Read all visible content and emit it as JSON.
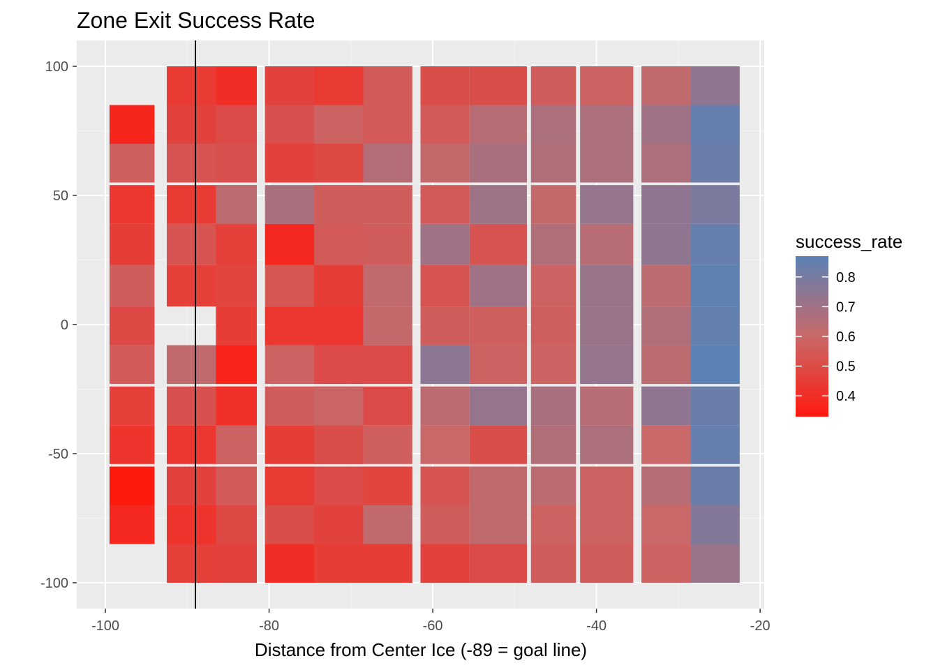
{
  "chart_data": {
    "type": "heatmap",
    "title": "Zone Exit Success Rate",
    "xlabel": "Distance from Center Ice (-89 = goal line)",
    "ylabel": "",
    "xlim": [
      -103.5,
      -19.5
    ],
    "ylim": [
      -110,
      110
    ],
    "x_ticks": [
      -100,
      -80,
      -60,
      -40,
      -20
    ],
    "y_ticks": [
      -100,
      -50,
      0,
      50,
      100
    ],
    "x_tick_labels": [
      "-100",
      "-80",
      "-60",
      "-40",
      "-20"
    ],
    "y_tick_labels": [
      "-100",
      "-50",
      "0",
      "50",
      "100"
    ],
    "grid": true,
    "vline_x": -89,
    "legend": {
      "title": "success_rate",
      "position": "right",
      "range": [
        0.33,
        0.87
      ],
      "breaks": [
        0.4,
        0.5,
        0.6,
        0.7,
        0.8
      ],
      "break_labels": [
        "0.4",
        "0.5",
        "0.6",
        "0.7",
        "0.8"
      ],
      "low_color": "#ff1a0f",
      "mid_color": "#c86868",
      "high_color": "#5b82b5"
    },
    "columns": [
      {
        "x0": -99.5,
        "x1": -94,
        "cells": [
          {
            "y0": -85,
            "y1": -70,
            "v": 0.38
          },
          {
            "y0": -70,
            "y1": -55,
            "v": 0.33
          },
          {
            "y0": -54,
            "y1": -39,
            "v": 0.42
          },
          {
            "y0": -39,
            "y1": -24,
            "v": 0.46
          },
          {
            "y0": -23,
            "y1": -8,
            "v": 0.55
          },
          {
            "y0": -8,
            "y1": 7,
            "v": 0.49
          },
          {
            "y0": 7,
            "y1": 23,
            "v": 0.56
          },
          {
            "y0": 23,
            "y1": 39,
            "v": 0.45
          },
          {
            "y0": 39,
            "y1": 54,
            "v": 0.43
          },
          {
            "y0": 55,
            "y1": 70,
            "v": 0.57
          },
          {
            "y0": 70,
            "y1": 85,
            "v": 0.37
          }
        ]
      },
      {
        "x0": -92.5,
        "x1": -81.5,
        "cells": [
          {
            "y0": -100,
            "y1": -85,
            "v": 0.46
          },
          {
            "y0": -85,
            "y1": -70,
            "v": 0.42
          },
          {
            "y0": -70,
            "y1": -55,
            "v": 0.47
          },
          {
            "y0": -54,
            "y1": -39,
            "v": 0.43
          },
          {
            "y0": -39,
            "y1": -24,
            "v": 0.52
          },
          {
            "y0": -23,
            "y1": -8,
            "v": 0.62
          },
          {
            "y0": 7,
            "y1": 23,
            "v": 0.46
          },
          {
            "y0": 23,
            "y1": 39,
            "v": 0.53
          },
          {
            "y0": 39,
            "y1": 54,
            "v": 0.44
          },
          {
            "y0": 55,
            "y1": 70,
            "v": 0.53
          },
          {
            "y0": 70,
            "y1": 85,
            "v": 0.47
          },
          {
            "y0": 85,
            "y1": 100,
            "v": 0.44
          }
        ]
      },
      {
        "x0": -86.5,
        "x1": -81.5,
        "cells": [
          {
            "y0": -100,
            "y1": -85,
            "v": 0.47
          },
          {
            "y0": -85,
            "y1": -70,
            "v": 0.49
          },
          {
            "y0": -70,
            "y1": -55,
            "v": 0.55
          },
          {
            "y0": -54,
            "y1": -39,
            "v": 0.58
          },
          {
            "y0": -39,
            "y1": -24,
            "v": 0.41
          },
          {
            "y0": -23,
            "y1": -8,
            "v": 0.36
          },
          {
            "y0": -8,
            "y1": 7,
            "v": 0.45
          },
          {
            "y0": 7,
            "y1": 23,
            "v": 0.48
          },
          {
            "y0": 23,
            "y1": 39,
            "v": 0.46
          },
          {
            "y0": 39,
            "y1": 54,
            "v": 0.63
          },
          {
            "y0": 55,
            "y1": 70,
            "v": 0.52
          },
          {
            "y0": 70,
            "y1": 85,
            "v": 0.5
          },
          {
            "y0": 85,
            "y1": 100,
            "v": 0.4
          }
        ]
      },
      {
        "x0": -80.5,
        "x1": -68.5,
        "cells": [
          {
            "y0": -100,
            "y1": -85,
            "v": 0.4
          },
          {
            "y0": -85,
            "y1": -70,
            "v": 0.51
          },
          {
            "y0": -70,
            "y1": -55,
            "v": 0.44
          },
          {
            "y0": -54,
            "y1": -39,
            "v": 0.45
          },
          {
            "y0": -39,
            "y1": -24,
            "v": 0.56
          },
          {
            "y0": -23,
            "y1": -8,
            "v": 0.58
          },
          {
            "y0": -8,
            "y1": 7,
            "v": 0.43
          },
          {
            "y0": 7,
            "y1": 23,
            "v": 0.54
          },
          {
            "y0": 23,
            "y1": 39,
            "v": 0.38
          },
          {
            "y0": 39,
            "y1": 54,
            "v": 0.68
          },
          {
            "y0": 55,
            "y1": 70,
            "v": 0.47
          },
          {
            "y0": 70,
            "y1": 85,
            "v": 0.52
          },
          {
            "y0": 85,
            "y1": 100,
            "v": 0.47
          }
        ]
      },
      {
        "x0": -74.5,
        "x1": -68.5,
        "cells": [
          {
            "y0": -100,
            "y1": -85,
            "v": 0.45
          },
          {
            "y0": -85,
            "y1": -70,
            "v": 0.47
          },
          {
            "y0": -70,
            "y1": -55,
            "v": 0.5
          },
          {
            "y0": -54,
            "y1": -39,
            "v": 0.51
          },
          {
            "y0": -39,
            "y1": -24,
            "v": 0.59
          },
          {
            "y0": -23,
            "y1": -8,
            "v": 0.5
          },
          {
            "y0": -8,
            "y1": 7,
            "v": 0.43
          },
          {
            "y0": 7,
            "y1": 23,
            "v": 0.45
          },
          {
            "y0": 23,
            "y1": 39,
            "v": 0.55
          },
          {
            "y0": 39,
            "y1": 54,
            "v": 0.56
          },
          {
            "y0": 55,
            "y1": 70,
            "v": 0.49
          },
          {
            "y0": 70,
            "y1": 85,
            "v": 0.58
          },
          {
            "y0": 85,
            "y1": 100,
            "v": 0.44
          }
        ]
      },
      {
        "x0": -68.5,
        "x1": -62.5,
        "cells": [
          {
            "y0": -100,
            "y1": -85,
            "v": 0.45
          },
          {
            "y0": -85,
            "y1": -70,
            "v": 0.62
          },
          {
            "y0": -70,
            "y1": -55,
            "v": 0.48
          },
          {
            "y0": -54,
            "y1": -39,
            "v": 0.57
          },
          {
            "y0": -39,
            "y1": -24,
            "v": 0.5
          },
          {
            "y0": -23,
            "y1": -8,
            "v": 0.5
          },
          {
            "y0": -8,
            "y1": 7,
            "v": 0.61
          },
          {
            "y0": 7,
            "y1": 23,
            "v": 0.62
          },
          {
            "y0": 23,
            "y1": 39,
            "v": 0.56
          },
          {
            "y0": 39,
            "y1": 54,
            "v": 0.56
          },
          {
            "y0": 55,
            "y1": 70,
            "v": 0.65
          },
          {
            "y0": 70,
            "y1": 85,
            "v": 0.55
          },
          {
            "y0": 85,
            "y1": 100,
            "v": 0.55
          }
        ]
      },
      {
        "x0": -61.5,
        "x1": -55.5,
        "cells": [
          {
            "y0": -100,
            "y1": -85,
            "v": 0.47
          },
          {
            "y0": -85,
            "y1": -70,
            "v": 0.56
          },
          {
            "y0": -70,
            "y1": -55,
            "v": 0.53
          },
          {
            "y0": -54,
            "y1": -39,
            "v": 0.6
          },
          {
            "y0": -39,
            "y1": -24,
            "v": 0.63
          },
          {
            "y0": -23,
            "y1": -8,
            "v": 0.75
          },
          {
            "y0": -8,
            "y1": 7,
            "v": 0.56
          },
          {
            "y0": 7,
            "y1": 23,
            "v": 0.53
          },
          {
            "y0": 23,
            "y1": 39,
            "v": 0.7
          },
          {
            "y0": 39,
            "y1": 54,
            "v": 0.55
          },
          {
            "y0": 55,
            "y1": 70,
            "v": 0.61
          },
          {
            "y0": 70,
            "y1": 85,
            "v": 0.55
          },
          {
            "y0": 85,
            "y1": 100,
            "v": 0.51
          }
        ]
      },
      {
        "x0": -55.5,
        "x1": -48.5,
        "cells": [
          {
            "y0": -100,
            "y1": -85,
            "v": 0.5
          },
          {
            "y0": -85,
            "y1": -70,
            "v": 0.62
          },
          {
            "y0": -70,
            "y1": -55,
            "v": 0.62
          },
          {
            "y0": -54,
            "y1": -39,
            "v": 0.51
          },
          {
            "y0": -39,
            "y1": -24,
            "v": 0.73
          },
          {
            "y0": -23,
            "y1": -8,
            "v": 0.58
          },
          {
            "y0": -8,
            "y1": 7,
            "v": 0.57
          },
          {
            "y0": 7,
            "y1": 23,
            "v": 0.7
          },
          {
            "y0": 23,
            "y1": 39,
            "v": 0.53
          },
          {
            "y0": 39,
            "y1": 54,
            "v": 0.71
          },
          {
            "y0": 55,
            "y1": 70,
            "v": 0.68
          },
          {
            "y0": 70,
            "y1": 85,
            "v": 0.64
          },
          {
            "y0": 85,
            "y1": 100,
            "v": 0.51
          }
        ]
      },
      {
        "x0": -48,
        "x1": -42.5,
        "cells": [
          {
            "y0": -100,
            "y1": -85,
            "v": 0.56
          },
          {
            "y0": -85,
            "y1": -70,
            "v": 0.58
          },
          {
            "y0": -70,
            "y1": -55,
            "v": 0.63
          },
          {
            "y0": -54,
            "y1": -39,
            "v": 0.66
          },
          {
            "y0": -39,
            "y1": -24,
            "v": 0.68
          },
          {
            "y0": -23,
            "y1": -8,
            "v": 0.58
          },
          {
            "y0": -8,
            "y1": 7,
            "v": 0.57
          },
          {
            "y0": 7,
            "y1": 23,
            "v": 0.58
          },
          {
            "y0": 23,
            "y1": 39,
            "v": 0.66
          },
          {
            "y0": 39,
            "y1": 54,
            "v": 0.61
          },
          {
            "y0": 55,
            "y1": 70,
            "v": 0.66
          },
          {
            "y0": 70,
            "y1": 85,
            "v": 0.67
          },
          {
            "y0": 85,
            "y1": 100,
            "v": 0.56
          }
        ]
      },
      {
        "x0": -42,
        "x1": -35.5,
        "cells": [
          {
            "y0": -100,
            "y1": -85,
            "v": 0.56
          },
          {
            "y0": -85,
            "y1": -70,
            "v": 0.58
          },
          {
            "y0": -70,
            "y1": -55,
            "v": 0.58
          },
          {
            "y0": -54,
            "y1": -39,
            "v": 0.67
          },
          {
            "y0": -39,
            "y1": -24,
            "v": 0.64
          },
          {
            "y0": -23,
            "y1": -8,
            "v": 0.73
          },
          {
            "y0": -8,
            "y1": 7,
            "v": 0.72
          },
          {
            "y0": 7,
            "y1": 23,
            "v": 0.72
          },
          {
            "y0": 23,
            "y1": 39,
            "v": 0.64
          },
          {
            "y0": 39,
            "y1": 54,
            "v": 0.73
          },
          {
            "y0": 55,
            "y1": 70,
            "v": 0.67
          },
          {
            "y0": 70,
            "y1": 85,
            "v": 0.67
          },
          {
            "y0": 85,
            "y1": 100,
            "v": 0.58
          }
        ]
      },
      {
        "x0": -34.5,
        "x1": -28.5,
        "cells": [
          {
            "y0": -100,
            "y1": -85,
            "v": 0.58
          },
          {
            "y0": -85,
            "y1": -70,
            "v": 0.6
          },
          {
            "y0": -70,
            "y1": -55,
            "v": 0.64
          },
          {
            "y0": -54,
            "y1": -39,
            "v": 0.6
          },
          {
            "y0": -39,
            "y1": -24,
            "v": 0.74
          },
          {
            "y0": -23,
            "y1": -8,
            "v": 0.63
          },
          {
            "y0": -8,
            "y1": 7,
            "v": 0.66
          },
          {
            "y0": 7,
            "y1": 23,
            "v": 0.63
          },
          {
            "y0": 23,
            "y1": 39,
            "v": 0.74
          },
          {
            "y0": 39,
            "y1": 54,
            "v": 0.74
          },
          {
            "y0": 55,
            "y1": 70,
            "v": 0.67
          },
          {
            "y0": 70,
            "y1": 85,
            "v": 0.7
          },
          {
            "y0": 85,
            "y1": 100,
            "v": 0.62
          }
        ]
      },
      {
        "x0": -28.5,
        "x1": -22.5,
        "cells": [
          {
            "y0": -100,
            "y1": -85,
            "v": 0.72
          },
          {
            "y0": -85,
            "y1": -70,
            "v": 0.77
          },
          {
            "y0": -70,
            "y1": -55,
            "v": 0.83
          },
          {
            "y0": -54,
            "y1": -39,
            "v": 0.84
          },
          {
            "y0": -39,
            "y1": -24,
            "v": 0.83
          },
          {
            "y0": -23,
            "y1": -8,
            "v": 0.87
          },
          {
            "y0": -8,
            "y1": 7,
            "v": 0.85
          },
          {
            "y0": 7,
            "y1": 23,
            "v": 0.86
          },
          {
            "y0": 23,
            "y1": 39,
            "v": 0.84
          },
          {
            "y0": 39,
            "y1": 54,
            "v": 0.79
          },
          {
            "y0": 55,
            "y1": 70,
            "v": 0.83
          },
          {
            "y0": 70,
            "y1": 85,
            "v": 0.84
          },
          {
            "y0": 85,
            "y1": 100,
            "v": 0.74
          }
        ]
      }
    ]
  }
}
